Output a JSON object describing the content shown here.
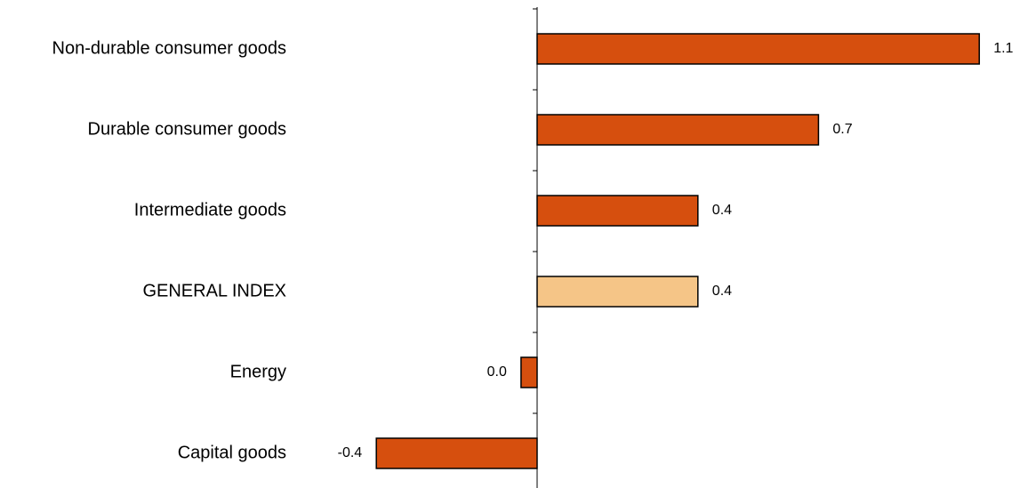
{
  "chart_data": {
    "type": "bar",
    "orientation": "horizontal",
    "categories": [
      "Non-durable consumer goods",
      "Durable consumer goods",
      "Intermediate goods",
      "GENERAL INDEX",
      "Energy",
      "Capital goods"
    ],
    "values": [
      1.1,
      0.7,
      0.4,
      0.4,
      -0.04,
      -0.4
    ],
    "value_labels": [
      "1.1",
      "0.7",
      "0.4",
      "0.4",
      "0.0",
      "-0.4"
    ],
    "title": "",
    "xlabel": "",
    "ylabel": "",
    "xlim": [
      -1.3,
      1.1
    ],
    "grid": false,
    "legend": "none",
    "colors": {
      "default": "#d64f0e",
      "highlight": "#f5c587",
      "highlight_category": "GENERAL INDEX",
      "stroke": "#000000",
      "axis": "#000000"
    }
  }
}
